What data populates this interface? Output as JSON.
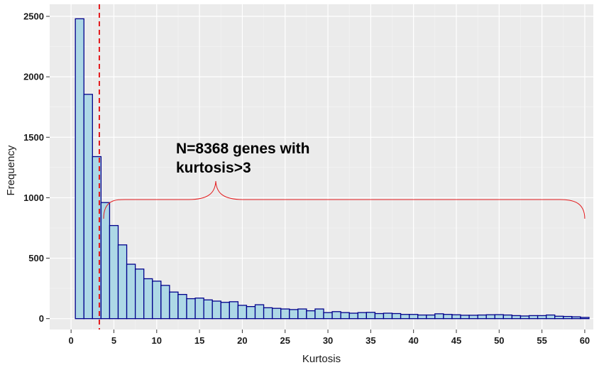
{
  "chart_data": {
    "type": "bar",
    "subtype": "histogram",
    "xlabel": "Kurtosis",
    "ylabel": "Frequency",
    "xlim": [
      -2.5,
      61
    ],
    "ylim": [
      -90,
      2600
    ],
    "x_ticks": [
      0,
      5,
      10,
      15,
      20,
      25,
      30,
      35,
      40,
      45,
      50,
      55,
      60
    ],
    "y_ticks": [
      0,
      500,
      1000,
      1500,
      2000,
      2500
    ],
    "bin_width": 1,
    "bin_start": 0.5,
    "values": [
      2480,
      1855,
      1340,
      960,
      770,
      610,
      450,
      410,
      330,
      310,
      275,
      220,
      200,
      165,
      170,
      155,
      145,
      135,
      140,
      110,
      100,
      115,
      90,
      85,
      80,
      75,
      80,
      65,
      80,
      50,
      58,
      50,
      45,
      50,
      52,
      42,
      45,
      42,
      35,
      35,
      30,
      30,
      40,
      35,
      32,
      28,
      28,
      30,
      32,
      33,
      30,
      25,
      22,
      25,
      25,
      30,
      20,
      18,
      15,
      10
    ],
    "threshold_line": {
      "x": 3.3,
      "color": "#e31a1c",
      "style": "dashed"
    },
    "brace": {
      "x_start": 3.8,
      "x_end": 60,
      "y_level": 985,
      "tip_x": 16.9,
      "color": "#e31a1c"
    },
    "annotation": {
      "lines": [
        "N=8368 genes with",
        "kurtosis>3"
      ]
    },
    "grid": true,
    "legend": "none",
    "colors": {
      "panel_background": "#ebebeb",
      "grid_major": "#ffffff",
      "grid_minor": "#f5f5f5",
      "bar_fill": "#add8e6",
      "bar_edge": "#00008b",
      "axis_text": "#1a1a1a"
    }
  }
}
